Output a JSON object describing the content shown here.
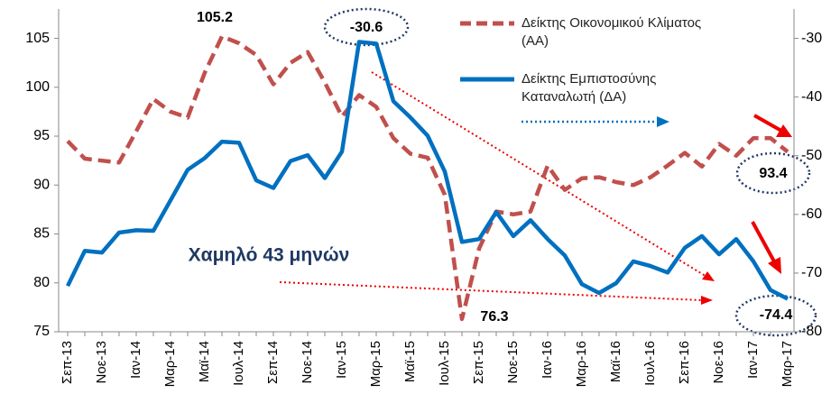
{
  "chart_data": {
    "type": "line",
    "categories": [
      "Σεπ-13",
      null,
      "Νοε-13",
      null,
      "Ιαν-14",
      null,
      "Μαρ-14",
      null,
      "Μαϊ-14",
      null,
      "Ιουλ-14",
      null,
      "Σεπ-14",
      null,
      "Νοε-14",
      null,
      "Ιαν-15",
      null,
      "Μαρ-15",
      null,
      "Μαϊ-15",
      null,
      "Ιουλ-15",
      null,
      "Σεπ-15",
      null,
      "Νοε-15",
      null,
      "Ιαν-16",
      null,
      "Μαρ-16",
      null,
      "Μαϊ-16",
      null,
      "Ιουλ-16",
      null,
      "Σεπ-16",
      null,
      "Νοε-16",
      null,
      "Ιαν-17",
      null,
      "Μαρ-17"
    ],
    "series": [
      {
        "name": "Δείκτης Οικονομικού Κλίματος (ΑΑ)",
        "color": "#c0504d",
        "dashed": true,
        "values": [
          94.5,
          92.7,
          92.5,
          92.3,
          95.5,
          98.8,
          97.5,
          96.9,
          101.5,
          105.2,
          104.5,
          103.3,
          100.3,
          102.5,
          103.6,
          100.5,
          97.0,
          99.2,
          98.0,
          94.8,
          93.2,
          92.8,
          89.0,
          76.3,
          83.5,
          87.3,
          87.0,
          87.3,
          92.0,
          89.5,
          90.7,
          90.8,
          90.3,
          90.0,
          90.8,
          92.0,
          93.3,
          91.9,
          94.2,
          93.0,
          94.8,
          94.8,
          93.4
        ]
      },
      {
        "name": "Δείκτης Εμπιστοσύνης Καταναλωτή (ΔΑ)",
        "color": "#0070c0",
        "axis": "y2",
        "values": [
          -72.2,
          -66.2,
          -66.5,
          -63.1,
          -62.7,
          -62.8,
          -57.6,
          -52.4,
          -50.4,
          -47.6,
          -47.8,
          -54.2,
          -55.5,
          -50.9,
          -49.9,
          -53.8,
          -49.3,
          -30.6,
          -30.9,
          -40.7,
          -43.5,
          -46.6,
          -52.7,
          -64.7,
          -64.2,
          -59.6,
          -63.7,
          -61.0,
          -64.2,
          -67.0,
          -71.9,
          -73.4,
          -71.7,
          -68.0,
          -68.8,
          -69.9,
          -65.7,
          -63.7,
          -66.8,
          -64.2,
          -68.0,
          -72.9,
          -74.4
        ]
      }
    ],
    "ylim": [
      75,
      108
    ],
    "yticks": [
      75,
      80,
      85,
      90,
      95,
      100,
      105
    ],
    "y2lim": [
      -80,
      -25
    ],
    "y2ticks": [
      -80,
      -70,
      -60,
      -50,
      -40,
      -30
    ],
    "annotations": [
      "105.2",
      "-30.6",
      "76.3",
      "93.4",
      "-74.4",
      "Χαμηλό 43 μηνών"
    ],
    "grid": false
  }
}
